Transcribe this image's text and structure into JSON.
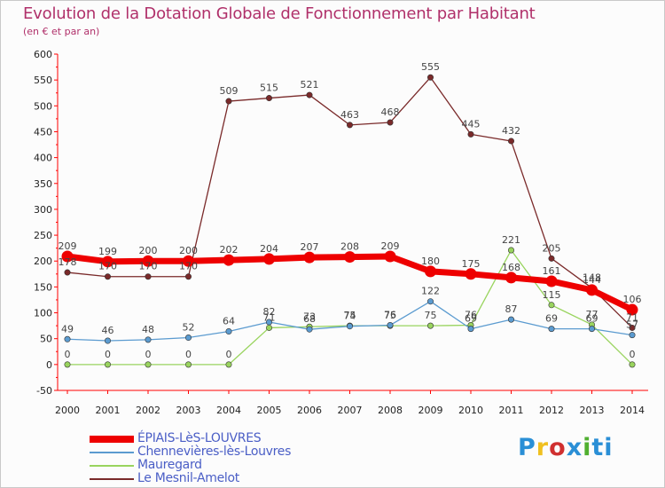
{
  "title": "Evolution de la Dotation Globale de Fonctionnement par Habitant",
  "subtitle": "(en € et par an)",
  "logo": {
    "text": "Proxiti",
    "colors": [
      "#2a8fd6",
      "#f0c020",
      "#d03030",
      "#2a8fd6",
      "#50b030",
      "#2a8fd6",
      "#2a8fd6"
    ]
  },
  "chart_data": {
    "type": "line",
    "title": "Evolution de la Dotation Globale de Fonctionnement par Habitant",
    "subtitle": "(en € et par an)",
    "xlabel": "",
    "ylabel": "",
    "ylim": [
      -50,
      600
    ],
    "yticks": [
      -50,
      0,
      50,
      100,
      150,
      200,
      250,
      300,
      350,
      400,
      450,
      500,
      550,
      600
    ],
    "categories": [
      "2000",
      "2001",
      "2002",
      "2003",
      "2004",
      "2005",
      "2006",
      "2007",
      "2008",
      "2009",
      "2010",
      "2011",
      "2012",
      "2013",
      "2014"
    ],
    "grid": false,
    "legend_position": "bottom-left",
    "series": [
      {
        "name": "ÉPIAIS-LèS-LOUVRES",
        "color": "#ee0000",
        "values": [
          209,
          199,
          200,
          200,
          202,
          204,
          207,
          208,
          209,
          180,
          175,
          168,
          161,
          144,
          106
        ]
      },
      {
        "name": "Chennevières-lès-Louvres",
        "color": "#5b9bd0",
        "values": [
          49,
          46,
          48,
          52,
          64,
          82,
          68,
          74,
          76,
          122,
          69,
          87,
          69,
          69,
          57
        ]
      },
      {
        "name": "Mauregard",
        "color": "#99d45e",
        "values": [
          0,
          0,
          0,
          0,
          0,
          71,
          73,
          75,
          75,
          75,
          76,
          221,
          115,
          77,
          0
        ]
      },
      {
        "name": "Le Mesnil-Amelot",
        "color": "#7a2a2a",
        "values": [
          178,
          170,
          170,
          170,
          509,
          515,
          521,
          463,
          468,
          555,
          445,
          432,
          205,
          148,
          71
        ]
      }
    ]
  }
}
